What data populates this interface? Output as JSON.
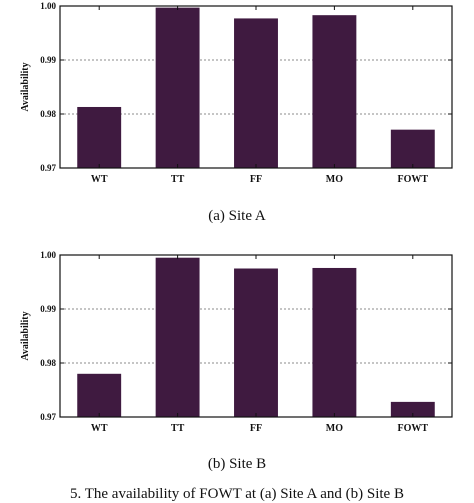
{
  "chart_data": [
    {
      "type": "bar",
      "ylabel": "Availability",
      "xlabel": "",
      "ylim": [
        0.97,
        1.0
      ],
      "yticks": [
        "0.97",
        "0.98",
        "0.99",
        "1.00"
      ],
      "grid": "horizontal dotted",
      "bar_color": "#3f1a40",
      "categories": [
        "WT",
        "TT",
        "FF",
        "MO",
        "FOWT"
      ],
      "values": [
        0.9813,
        0.9997,
        0.9977,
        0.9983,
        0.9771
      ],
      "caption": "(a) Site A"
    },
    {
      "type": "bar",
      "ylabel": "Availability",
      "xlabel": "",
      "ylim": [
        0.97,
        1.0
      ],
      "yticks": [
        "0.97",
        "0.98",
        "0.99",
        "1.00"
      ],
      "grid": "horizontal dotted",
      "bar_color": "#3f1a40",
      "categories": [
        "WT",
        "TT",
        "FF",
        "MO",
        "FOWT"
      ],
      "values": [
        0.978,
        0.9995,
        0.9975,
        0.9976,
        0.9728
      ],
      "caption": "(b) Site B"
    }
  ],
  "figure_caption": "5.   The availability of FOWT at (a) Site A and (b) Site B"
}
